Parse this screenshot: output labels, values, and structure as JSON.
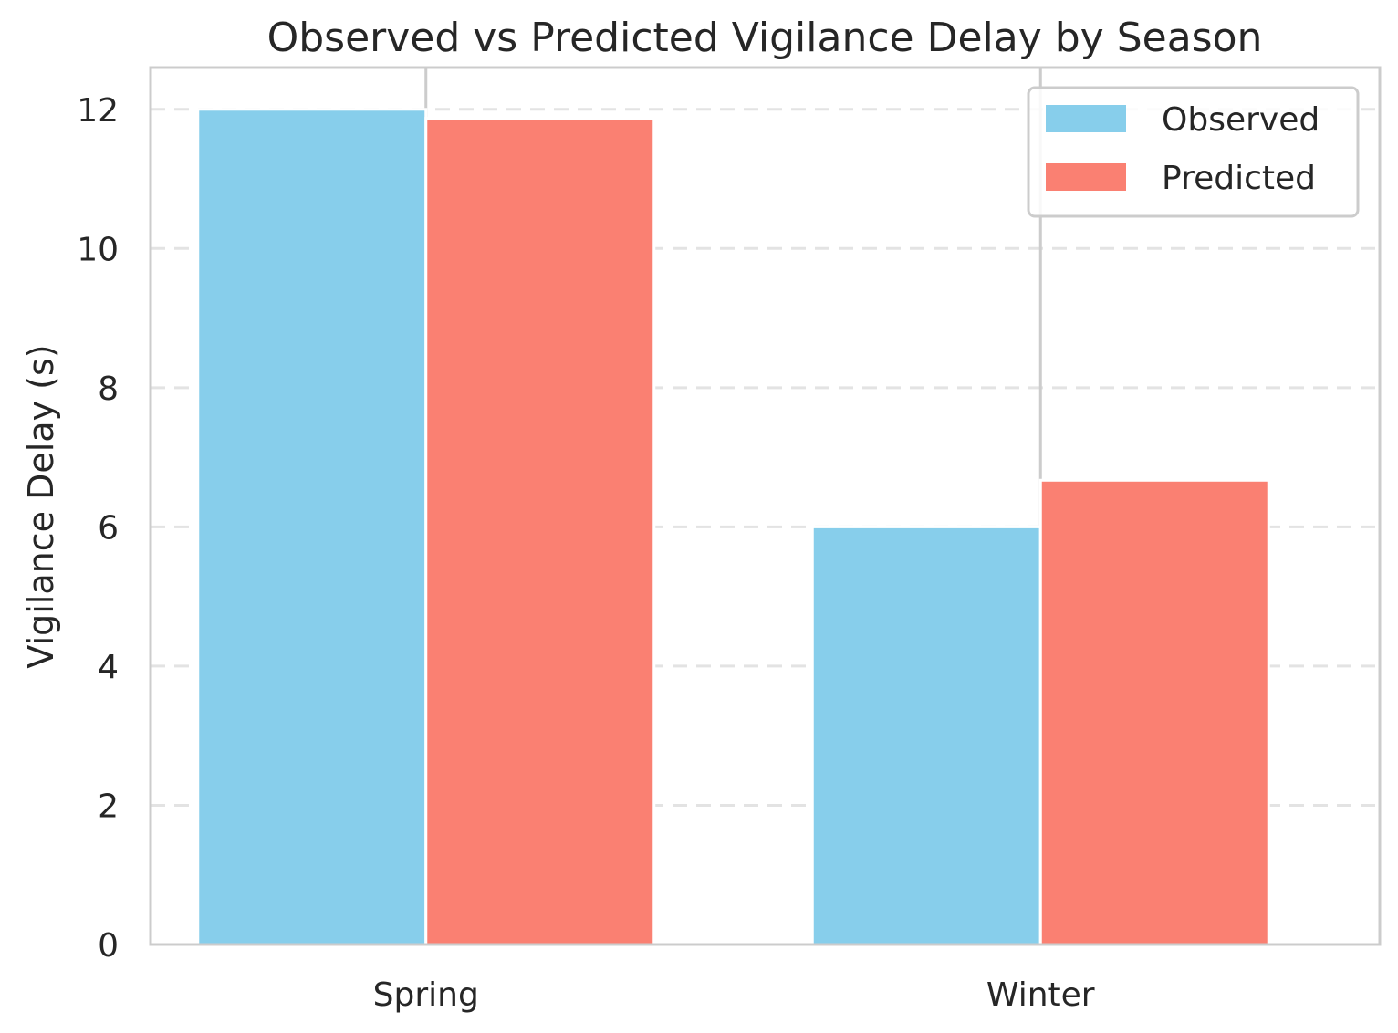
{
  "chart_data": {
    "type": "bar",
    "title": "Observed vs Predicted Vigilance Delay by Season",
    "xlabel": "",
    "ylabel": "Vigilance Delay (s)",
    "categories": [
      "Spring",
      "Winter"
    ],
    "series": [
      {
        "name": "Observed",
        "values": [
          12.0,
          6.0
        ],
        "color": "#87CEEB"
      },
      {
        "name": "Predicted",
        "values": [
          11.87,
          6.67
        ],
        "color": "#FA8072"
      }
    ],
    "ylim": [
      0,
      12.6
    ],
    "yticks": [
      "0",
      "2",
      "4",
      "6",
      "8",
      "10",
      "12"
    ],
    "grid": "y-dashed",
    "legend_position": "top-right"
  }
}
